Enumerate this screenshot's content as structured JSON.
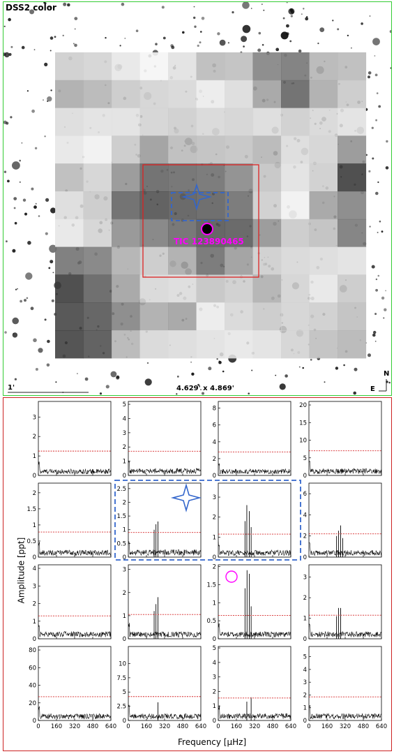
{
  "sky_image": {
    "survey_label": "DSS2 color",
    "scale_label": "1'",
    "field_size": "4.629' x 4.869'",
    "compass_north": "N",
    "compass_east": "E",
    "target_label": "TIC 123890465",
    "colors": {
      "target": "#ff00ff",
      "aperture": "#dd2222",
      "pixel_box": "#3366cc",
      "star_marker": "#3366cc",
      "frame": "#33cc33"
    }
  },
  "chart_data": {
    "type": "line",
    "grid": "4x4 periodogram panels",
    "xlabel": "Frequency [μHz]",
    "ylabel": "Amplitude [ppt]",
    "xlim": [
      0,
      640
    ],
    "xticks": [
      0,
      160,
      320,
      480,
      640
    ],
    "threshold_color": "#d62728",
    "panels": [
      {
        "row": 0,
        "col": 0,
        "ylim": [
          0,
          3.8
        ],
        "yticks": [
          0,
          1,
          2,
          3
        ],
        "threshold": 1.25,
        "noise": 0.3,
        "peaks": []
      },
      {
        "row": 0,
        "col": 1,
        "ylim": [
          0,
          5.2
        ],
        "yticks": [
          0,
          1,
          2,
          3,
          4,
          5
        ],
        "threshold": 1.7,
        "noise": 0.45,
        "peaks": []
      },
      {
        "row": 0,
        "col": 2,
        "ylim": [
          0,
          8.8
        ],
        "yticks": [
          0,
          2,
          4,
          6,
          8
        ],
        "threshold": 2.8,
        "noise": 0.7,
        "peaks": []
      },
      {
        "row": 0,
        "col": 3,
        "ylim": [
          0,
          21
        ],
        "yticks": [
          0,
          5,
          10,
          15,
          20
        ],
        "threshold": 7,
        "noise": 1.8,
        "peaks": []
      },
      {
        "row": 1,
        "col": 0,
        "ylim": [
          0,
          2.3
        ],
        "yticks": [
          0.0,
          0.5,
          1.0,
          1.5,
          2.0
        ],
        "threshold": 0.78,
        "noise": 0.2,
        "peaks": []
      },
      {
        "row": 1,
        "col": 1,
        "ylim": [
          0,
          2.7
        ],
        "yticks": [
          0.0,
          0.5,
          1.0,
          1.5,
          2.0,
          2.5
        ],
        "threshold": 0.9,
        "noise": 0.25,
        "peaks": [
          [
            228,
            1.0
          ],
          [
            244,
            1.2
          ],
          [
            262,
            1.3
          ]
        ]
      },
      {
        "row": 1,
        "col": 2,
        "ylim": [
          0,
          3.7
        ],
        "yticks": [
          0,
          1,
          2,
          3
        ],
        "threshold": 1.15,
        "noise": 0.32,
        "peaks": [
          [
            236,
            1.8
          ],
          [
            252,
            2.6
          ],
          [
            274,
            2.3
          ],
          [
            290,
            1.5
          ]
        ]
      },
      {
        "row": 1,
        "col": 3,
        "ylim": [
          0,
          7.0
        ],
        "yticks": [
          0,
          2,
          4,
          6
        ],
        "threshold": 2.2,
        "noise": 0.6,
        "peaks": [
          [
            244,
            2.0
          ],
          [
            262,
            2.5
          ],
          [
            280,
            3.0
          ],
          [
            298,
            1.8
          ]
        ]
      },
      {
        "row": 2,
        "col": 0,
        "ylim": [
          0,
          4.2
        ],
        "yticks": [
          0,
          1,
          2,
          3,
          4
        ],
        "threshold": 1.3,
        "noise": 0.38,
        "peaks": []
      },
      {
        "row": 2,
        "col": 1,
        "ylim": [
          0,
          3.2
        ],
        "yticks": [
          0,
          1,
          2,
          3
        ],
        "threshold": 1.05,
        "noise": 0.28,
        "peaks": [
          [
            228,
            1.2
          ],
          [
            244,
            1.5
          ],
          [
            262,
            1.8
          ]
        ]
      },
      {
        "row": 2,
        "col": 2,
        "ylim": [
          0,
          2.05
        ],
        "yticks": [
          0.0,
          0.5,
          1.0,
          1.5,
          2.0
        ],
        "threshold": 0.65,
        "noise": 0.18,
        "peaks": [
          [
            236,
            1.4
          ],
          [
            254,
            1.9
          ],
          [
            274,
            1.8
          ],
          [
            290,
            0.9
          ]
        ]
      },
      {
        "row": 2,
        "col": 3,
        "ylim": [
          0,
          3.6
        ],
        "yticks": [
          0,
          1,
          2,
          3
        ],
        "threshold": 1.15,
        "noise": 0.32,
        "peaks": [
          [
            244,
            1.1
          ],
          [
            262,
            1.5
          ],
          [
            280,
            1.5
          ]
        ]
      },
      {
        "row": 3,
        "col": 0,
        "ylim": [
          0,
          84
        ],
        "yticks": [
          0,
          20,
          40,
          60,
          80
        ],
        "threshold": 27,
        "noise": 7,
        "peaks": []
      },
      {
        "row": 3,
        "col": 1,
        "ylim": [
          0,
          13
        ],
        "yticks": [
          0.0,
          2.5,
          5.0,
          7.5,
          10.0
        ],
        "threshold": 4.2,
        "noise": 1.1,
        "peaks": [
          [
            262,
            3.2
          ]
        ]
      },
      {
        "row": 3,
        "col": 2,
        "ylim": [
          0,
          5.1
        ],
        "yticks": [
          0,
          1,
          2,
          3,
          4,
          5
        ],
        "threshold": 1.55,
        "noise": 0.45,
        "peaks": [
          [
            252,
            1.3
          ],
          [
            290,
            1.6
          ]
        ]
      },
      {
        "row": 3,
        "col": 3,
        "ylim": [
          0,
          5.8
        ],
        "yticks": [
          0,
          1,
          2,
          3,
          4,
          5
        ],
        "threshold": 1.85,
        "noise": 0.5,
        "peaks": []
      }
    ]
  }
}
